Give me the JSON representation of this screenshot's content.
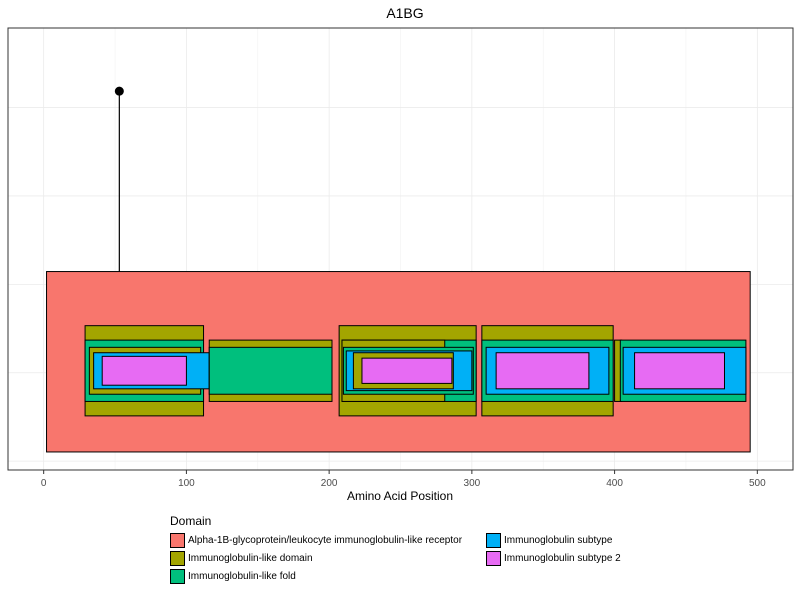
{
  "chart_data": {
    "type": "domain-track",
    "title": "A1BG",
    "xlabel": "Amino Acid Position",
    "ylabel": "",
    "xlim": [
      -25,
      525
    ],
    "ylim": [
      -0.05,
      2.4
    ],
    "x_ticks": [
      0,
      100,
      200,
      300,
      400,
      500
    ],
    "grid": true,
    "legend_title": "Domain",
    "legend_position": "bottom",
    "domains": [
      {
        "name": "Alpha-1B-glycoprotein/leukocyte immunoglobulin-like receptor",
        "color": "#F8766D"
      },
      {
        "name": "Immunoglobulin-like domain",
        "color": "#A3A500"
      },
      {
        "name": "Immunoglobulin-like fold",
        "color": "#00BF7D"
      },
      {
        "name": "Immunoglobulin subtype",
        "color": "#00B0F6"
      },
      {
        "name": "Immunoglobulin subtype 2",
        "color": "#E76BF3"
      }
    ],
    "features": [
      {
        "domain": 0,
        "start": 2,
        "end": 495,
        "y0": 0.05,
        "y1": 1.05
      },
      {
        "domain": 1,
        "start": 29,
        "end": 112,
        "y0": 0.25,
        "y1": 0.75
      },
      {
        "domain": 2,
        "start": 29,
        "end": 112,
        "y0": 0.33,
        "y1": 0.67
      },
      {
        "domain": 1,
        "start": 32,
        "end": 110,
        "y0": 0.37,
        "y1": 0.63
      },
      {
        "domain": 3,
        "start": 35,
        "end": 116,
        "y0": 0.4,
        "y1": 0.6
      },
      {
        "domain": 4,
        "start": 41,
        "end": 100,
        "y0": 0.42,
        "y1": 0.58
      },
      {
        "domain": 1,
        "start": 116,
        "end": 202,
        "y0": 0.33,
        "y1": 0.67
      },
      {
        "domain": 2,
        "start": 116,
        "end": 202,
        "y0": 0.37,
        "y1": 0.63
      },
      {
        "domain": 1,
        "start": 207,
        "end": 303,
        "y0": 0.25,
        "y1": 0.75
      },
      {
        "domain": 2,
        "start": 209,
        "end": 303,
        "y0": 0.33,
        "y1": 0.67
      },
      {
        "domain": 1,
        "start": 209,
        "end": 281,
        "y0": 0.33,
        "y1": 0.67
      },
      {
        "domain": 2,
        "start": 210,
        "end": 301,
        "y0": 0.37,
        "y1": 0.63
      },
      {
        "domain": 3,
        "start": 212,
        "end": 300,
        "y0": 0.39,
        "y1": 0.61
      },
      {
        "domain": 1,
        "start": 217,
        "end": 287,
        "y0": 0.4,
        "y1": 0.6
      },
      {
        "domain": 4,
        "start": 223,
        "end": 286,
        "y0": 0.43,
        "y1": 0.57
      },
      {
        "domain": 1,
        "start": 307,
        "end": 399,
        "y0": 0.25,
        "y1": 0.75
      },
      {
        "domain": 2,
        "start": 307,
        "end": 399,
        "y0": 0.33,
        "y1": 0.67
      },
      {
        "domain": 3,
        "start": 310,
        "end": 396,
        "y0": 0.37,
        "y1": 0.63
      },
      {
        "domain": 4,
        "start": 317,
        "end": 382,
        "y0": 0.4,
        "y1": 0.6
      },
      {
        "domain": 1,
        "start": 400,
        "end": 405,
        "y0": 0.33,
        "y1": 0.67
      },
      {
        "domain": 2,
        "start": 404,
        "end": 492,
        "y0": 0.33,
        "y1": 0.67
      },
      {
        "domain": 3,
        "start": 406,
        "end": 492,
        "y0": 0.37,
        "y1": 0.63
      },
      {
        "domain": 4,
        "start": 414,
        "end": 477,
        "y0": 0.4,
        "y1": 0.6
      }
    ],
    "lollipops": [
      {
        "position": 53,
        "y0": 1.05,
        "y1": 2.05
      }
    ]
  }
}
